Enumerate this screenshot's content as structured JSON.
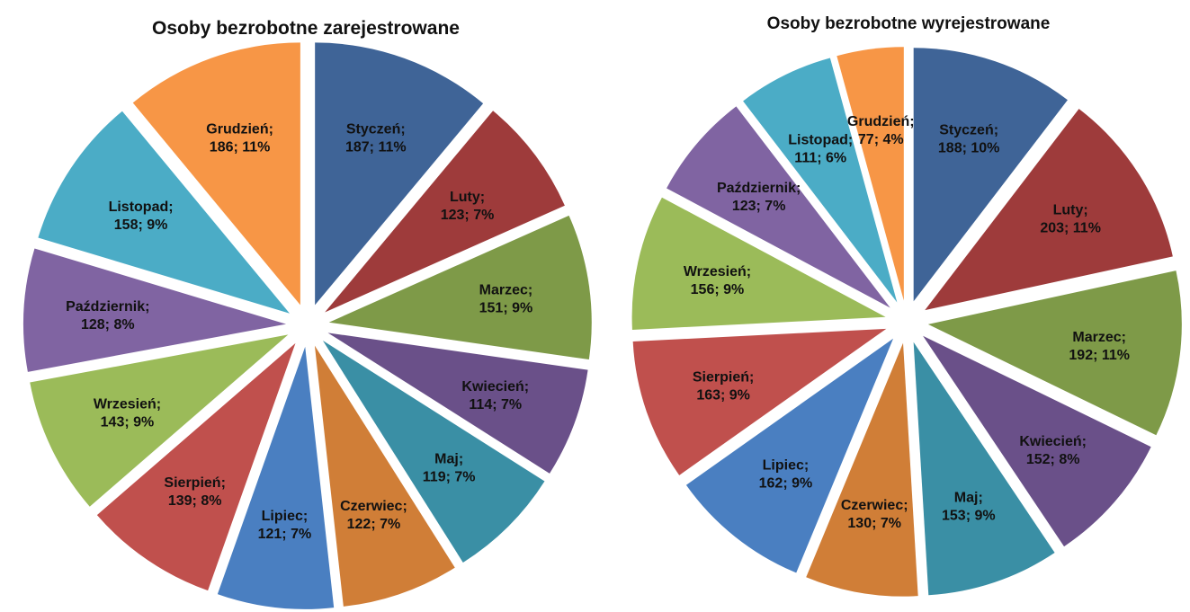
{
  "chart_data": [
    {
      "type": "pie",
      "title": "Osoby bezrobotne zarejestrowane",
      "separator": ";",
      "categories": [
        "Styczeń",
        "Luty",
        "Marzec",
        "Kwiecień",
        "Maj",
        "Czerwiec",
        "Lipiec",
        "Sierpień",
        "Wrzesień",
        "Październik",
        "Listopad",
        "Grudzień"
      ],
      "values": [
        187,
        123,
        151,
        114,
        119,
        122,
        121,
        139,
        143,
        128,
        158,
        186
      ],
      "value_labels": [
        "187; 11%",
        "123; 7%",
        "151; 9%",
        "114; 7%",
        "119; 7%",
        "122; 7%",
        "121; 7%",
        "139; 8%",
        "143; 9%",
        "128; 8%",
        "158; 9%",
        "186; 11%"
      ],
      "colors": [
        "#3F6497",
        "#9E3B3B",
        "#7E9A48",
        "#6A5089",
        "#3A8FA5",
        "#D07E37",
        "#4A7FC1",
        "#C0504D",
        "#9BBB59",
        "#8064A2",
        "#4BACC6",
        "#F79646"
      ]
    },
    {
      "type": "pie",
      "title": "Osoby bezrobotne wyrejestrowane",
      "separator": ";",
      "categories": [
        "Styczeń",
        "Luty",
        "Marzec",
        "Kwiecień",
        "Maj",
        "Czerwiec",
        "Lipiec",
        "Sierpień",
        "Wrzesień",
        "Październik",
        "Listopad",
        "Grudzień"
      ],
      "values": [
        188,
        203,
        192,
        152,
        153,
        130,
        162,
        163,
        156,
        123,
        111,
        77
      ],
      "value_labels": [
        "188; 10%",
        "203; 11%",
        "192; 11%",
        "152; 8%",
        "153; 9%",
        "130; 7%",
        "162; 9%",
        "163; 9%",
        "156; 9%",
        "123; 7%",
        "111; 6%",
        "77; 4%"
      ],
      "colors": [
        "#3F6497",
        "#9E3B3B",
        "#7E9A48",
        "#6A5089",
        "#3A8FA5",
        "#D07E37",
        "#4A7FC1",
        "#C0504D",
        "#9BBB59",
        "#8064A2",
        "#4BACC6",
        "#F79646"
      ]
    }
  ]
}
